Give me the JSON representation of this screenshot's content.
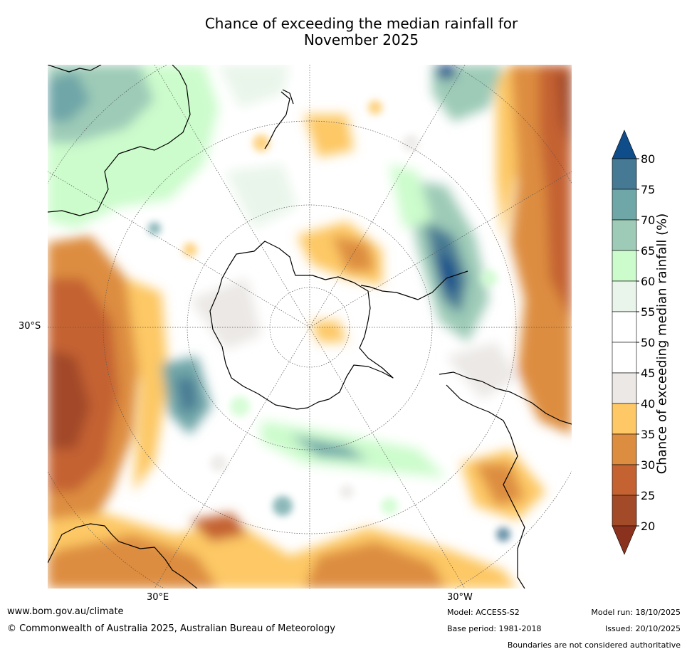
{
  "title_line1": "Chance of exceeding the median rainfall for",
  "title_line2": "November 2025",
  "map": {
    "projection": "south-polar-stereographic",
    "latitude_label": "30°S",
    "longitude_labels": {
      "east": "30°E",
      "west": "30°W"
    },
    "continents": [
      "Antarctica",
      "Australia",
      "New Zealand",
      "South America",
      "Africa"
    ]
  },
  "colorbar": {
    "title": "Chance of exceeding median rainfall (%)",
    "ticks": [
      "80",
      "75",
      "70",
      "65",
      "60",
      "55",
      "50",
      "45",
      "40",
      "35",
      "30",
      "25",
      "20"
    ],
    "bins": [
      {
        "range": "above 80",
        "color": "#0f4c8a"
      },
      {
        "range": "75-80",
        "color": "#467993"
      },
      {
        "range": "70-75",
        "color": "#6fa6a8"
      },
      {
        "range": "65-70",
        "color": "#9dcbb7"
      },
      {
        "range": "60-65",
        "color": "#ccfccc"
      },
      {
        "range": "55-60",
        "color": "#e9f5ea"
      },
      {
        "range": "50-55",
        "color": "#ffffff"
      },
      {
        "range": "45-50",
        "color": "#ffffff"
      },
      {
        "range": "40-45",
        "color": "#ebe8e5"
      },
      {
        "range": "35-40",
        "color": "#fdc865"
      },
      {
        "range": "30-35",
        "color": "#dd8d40"
      },
      {
        "range": "25-30",
        "color": "#c46231"
      },
      {
        "range": "20-25",
        "color": "#a34a29"
      },
      {
        "range": "below 20",
        "color": "#8a321e"
      }
    ]
  },
  "footer": {
    "website": "www.bom.gov.au/climate",
    "copyright": "© Commonwealth of Australia 2025, Australian Bureau of Meteorology",
    "model": "Model: ACCESS-S2",
    "base_period": "Base period: 1981-2018",
    "model_run": "Model run: 18/10/2025",
    "issued": "Issued: 20/10/2025",
    "disclaimer": "Boundaries are not considered authoritative"
  }
}
